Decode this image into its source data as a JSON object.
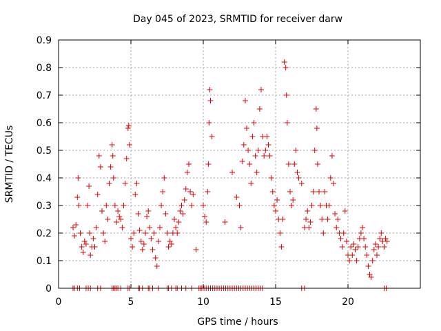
{
  "chart_data": {
    "type": "scatter",
    "title": "Day 045 of 2023, SRMTID for receiver darw",
    "xlabel": "GPS time / hours",
    "ylabel": "SRMTID / TECUs",
    "xlim": [
      0,
      25
    ],
    "ylim": [
      0,
      0.9
    ],
    "xticks": [
      0,
      5,
      10,
      15,
      20
    ],
    "yticks": [
      0,
      0.1,
      0.2,
      0.3,
      0.4,
      0.5,
      0.6,
      0.7,
      0.8,
      0.9
    ],
    "grid": true,
    "marker": "plus",
    "color": "#e00000",
    "series": [
      {
        "name": "darw",
        "points": [
          [
            1.0,
            0.22
          ],
          [
            1.1,
            0.19
          ],
          [
            1.2,
            0.23
          ],
          [
            1.3,
            0.33
          ],
          [
            1.35,
            0.4
          ],
          [
            1.4,
            0.3
          ],
          [
            1.5,
            0.2
          ],
          [
            1.6,
            0.15
          ],
          [
            1.7,
            0.13
          ],
          [
            1.8,
            0.17
          ],
          [
            1.9,
            0.16
          ],
          [
            2.0,
            0.3
          ],
          [
            2.1,
            0.37
          ],
          [
            2.15,
            0.2
          ],
          [
            2.2,
            0.12
          ],
          [
            2.3,
            0.15
          ],
          [
            2.4,
            0.18
          ],
          [
            2.5,
            0.15
          ],
          [
            2.6,
            0.22
          ],
          [
            2.7,
            0.34
          ],
          [
            2.8,
            0.48
          ],
          [
            2.9,
            0.44
          ],
          [
            3.0,
            0.28
          ],
          [
            3.1,
            0.2
          ],
          [
            3.2,
            0.17
          ],
          [
            3.3,
            0.3
          ],
          [
            3.4,
            0.25
          ],
          [
            3.5,
            0.38
          ],
          [
            3.6,
            0.44
          ],
          [
            3.7,
            0.52
          ],
          [
            3.75,
            0.48
          ],
          [
            3.8,
            0.4
          ],
          [
            3.9,
            0.3
          ],
          [
            4.0,
            0.24
          ],
          [
            4.1,
            0.28
          ],
          [
            4.2,
            0.26
          ],
          [
            4.3,
            0.25
          ],
          [
            4.4,
            0.22
          ],
          [
            4.5,
            0.3
          ],
          [
            4.6,
            0.38
          ],
          [
            4.7,
            0.47
          ],
          [
            4.8,
            0.58
          ],
          [
            4.85,
            0.59
          ],
          [
            4.9,
            0.52
          ],
          [
            5.0,
            0.18
          ],
          [
            5.1,
            0.15
          ],
          [
            5.2,
            0.2
          ],
          [
            5.3,
            0.34
          ],
          [
            5.4,
            0.38
          ],
          [
            5.5,
            0.27
          ],
          [
            5.6,
            0.21
          ],
          [
            5.7,
            0.17
          ],
          [
            5.8,
            0.14
          ],
          [
            5.9,
            0.16
          ],
          [
            6.0,
            0.2
          ],
          [
            6.1,
            0.26
          ],
          [
            6.2,
            0.28
          ],
          [
            6.3,
            0.22
          ],
          [
            6.4,
            0.18
          ],
          [
            6.5,
            0.14
          ],
          [
            6.6,
            0.2
          ],
          [
            6.7,
            0.11
          ],
          [
            6.8,
            0.08
          ],
          [
            6.9,
            0.17
          ],
          [
            7.0,
            0.22
          ],
          [
            7.1,
            0.3
          ],
          [
            7.2,
            0.35
          ],
          [
            7.3,
            0.4
          ],
          [
            7.4,
            0.27
          ],
          [
            7.5,
            0.2
          ],
          [
            7.6,
            0.15
          ],
          [
            7.7,
            0.17
          ],
          [
            7.8,
            0.16
          ],
          [
            7.9,
            0.2
          ],
          [
            8.0,
            0.25
          ],
          [
            8.1,
            0.22
          ],
          [
            8.2,
            0.2
          ],
          [
            8.3,
            0.24
          ],
          [
            8.4,
            0.28
          ],
          [
            8.5,
            0.3
          ],
          [
            8.6,
            0.27
          ],
          [
            8.7,
            0.32
          ],
          [
            8.8,
            0.36
          ],
          [
            8.9,
            0.42
          ],
          [
            9.0,
            0.45
          ],
          [
            9.1,
            0.35
          ],
          [
            9.2,
            0.3
          ],
          [
            9.3,
            0.34
          ],
          [
            9.5,
            0.14
          ],
          [
            10.0,
            0.3
          ],
          [
            10.1,
            0.26
          ],
          [
            10.2,
            0.24
          ],
          [
            10.3,
            0.35
          ],
          [
            10.35,
            0.45
          ],
          [
            10.4,
            0.6
          ],
          [
            10.45,
            0.72
          ],
          [
            10.5,
            0.68
          ],
          [
            10.6,
            0.55
          ],
          [
            11.5,
            0.24
          ],
          [
            12.0,
            0.42
          ],
          [
            12.3,
            0.33
          ],
          [
            12.5,
            0.3
          ],
          [
            12.6,
            0.22
          ],
          [
            12.7,
            0.46
          ],
          [
            12.8,
            0.52
          ],
          [
            12.9,
            0.68
          ],
          [
            13.0,
            0.58
          ],
          [
            13.1,
            0.5
          ],
          [
            13.2,
            0.45
          ],
          [
            13.3,
            0.38
          ],
          [
            13.4,
            0.55
          ],
          [
            13.5,
            0.6
          ],
          [
            13.6,
            0.48
          ],
          [
            13.7,
            0.42
          ],
          [
            13.8,
            0.5
          ],
          [
            13.9,
            0.65
          ],
          [
            14.0,
            0.72
          ],
          [
            14.1,
            0.55
          ],
          [
            14.2,
            0.48
          ],
          [
            14.3,
            0.5
          ],
          [
            14.4,
            0.55
          ],
          [
            14.5,
            0.52
          ],
          [
            14.6,
            0.48
          ],
          [
            14.7,
            0.4
          ],
          [
            14.8,
            0.35
          ],
          [
            14.9,
            0.3
          ],
          [
            15.0,
            0.28
          ],
          [
            15.1,
            0.32
          ],
          [
            15.2,
            0.25
          ],
          [
            15.3,
            0.2
          ],
          [
            15.4,
            0.15
          ],
          [
            15.5,
            0.25
          ],
          [
            15.6,
            0.82
          ],
          [
            15.7,
            0.8
          ],
          [
            15.75,
            0.7
          ],
          [
            15.8,
            0.6
          ],
          [
            15.9,
            0.45
          ],
          [
            16.0,
            0.35
          ],
          [
            16.1,
            0.3
          ],
          [
            16.2,
            0.32
          ],
          [
            16.3,
            0.45
          ],
          [
            16.4,
            0.5
          ],
          [
            16.5,
            0.42
          ],
          [
            16.6,
            0.4
          ],
          [
            16.8,
            0.38
          ],
          [
            17.0,
            0.22
          ],
          [
            17.1,
            0.25
          ],
          [
            17.2,
            0.28
          ],
          [
            17.3,
            0.22
          ],
          [
            17.4,
            0.24
          ],
          [
            17.5,
            0.3
          ],
          [
            17.6,
            0.35
          ],
          [
            17.7,
            0.5
          ],
          [
            17.8,
            0.65
          ],
          [
            17.85,
            0.58
          ],
          [
            17.9,
            0.45
          ],
          [
            18.0,
            0.35
          ],
          [
            18.1,
            0.3
          ],
          [
            18.2,
            0.25
          ],
          [
            18.3,
            0.2
          ],
          [
            18.4,
            0.35
          ],
          [
            18.5,
            0.3
          ],
          [
            18.6,
            0.25
          ],
          [
            18.7,
            0.3
          ],
          [
            18.8,
            0.4
          ],
          [
            18.9,
            0.48
          ],
          [
            19.0,
            0.38
          ],
          [
            19.1,
            0.27
          ],
          [
            19.2,
            0.22
          ],
          [
            19.3,
            0.25
          ],
          [
            19.4,
            0.2
          ],
          [
            19.5,
            0.18
          ],
          [
            19.6,
            0.15
          ],
          [
            19.7,
            0.2
          ],
          [
            19.8,
            0.28
          ],
          [
            19.9,
            0.17
          ],
          [
            20.0,
            0.12
          ],
          [
            20.1,
            0.1
          ],
          [
            20.2,
            0.15
          ],
          [
            20.3,
            0.12
          ],
          [
            20.4,
            0.16
          ],
          [
            20.5,
            0.14
          ],
          [
            20.6,
            0.1
          ],
          [
            20.7,
            0.15
          ],
          [
            20.8,
            0.18
          ],
          [
            20.9,
            0.2
          ],
          [
            21.0,
            0.22
          ],
          [
            21.1,
            0.18
          ],
          [
            21.2,
            0.15
          ],
          [
            21.3,
            0.12
          ],
          [
            21.4,
            0.08
          ],
          [
            21.5,
            0.05
          ],
          [
            21.6,
            0.04
          ],
          [
            21.7,
            0.1
          ],
          [
            21.8,
            0.14
          ],
          [
            21.9,
            0.16
          ],
          [
            22.0,
            0.12
          ],
          [
            22.1,
            0.15
          ],
          [
            22.2,
            0.18
          ],
          [
            22.3,
            0.2
          ],
          [
            22.4,
            0.17
          ],
          [
            22.5,
            0.15
          ],
          [
            22.6,
            0.18
          ],
          [
            22.7,
            0.17
          ]
        ],
        "zero_markers": [
          1.0,
          1.1,
          1.3,
          1.45,
          1.9,
          2.05,
          2.2,
          2.7,
          2.9,
          3.7,
          3.8,
          3.9,
          4.0,
          4.1,
          4.3,
          4.8,
          4.9,
          5.5,
          5.6,
          5.8,
          6.2,
          6.3,
          6.5,
          6.9,
          7.5,
          7.6,
          7.8,
          8.1,
          8.2,
          8.5,
          8.8,
          9.2,
          9.7,
          9.8,
          9.9,
          10.05,
          10.2,
          10.35,
          10.5,
          10.65,
          10.8,
          10.95,
          11.1,
          11.25,
          11.4,
          11.55,
          11.7,
          11.85,
          12.0,
          12.15,
          12.3,
          12.45,
          12.6,
          12.75,
          12.9,
          13.05,
          13.2,
          13.35,
          13.5,
          13.65,
          13.8,
          13.95,
          14.1,
          16.8,
          17.0,
          22.5,
          22.65
        ]
      }
    ]
  }
}
